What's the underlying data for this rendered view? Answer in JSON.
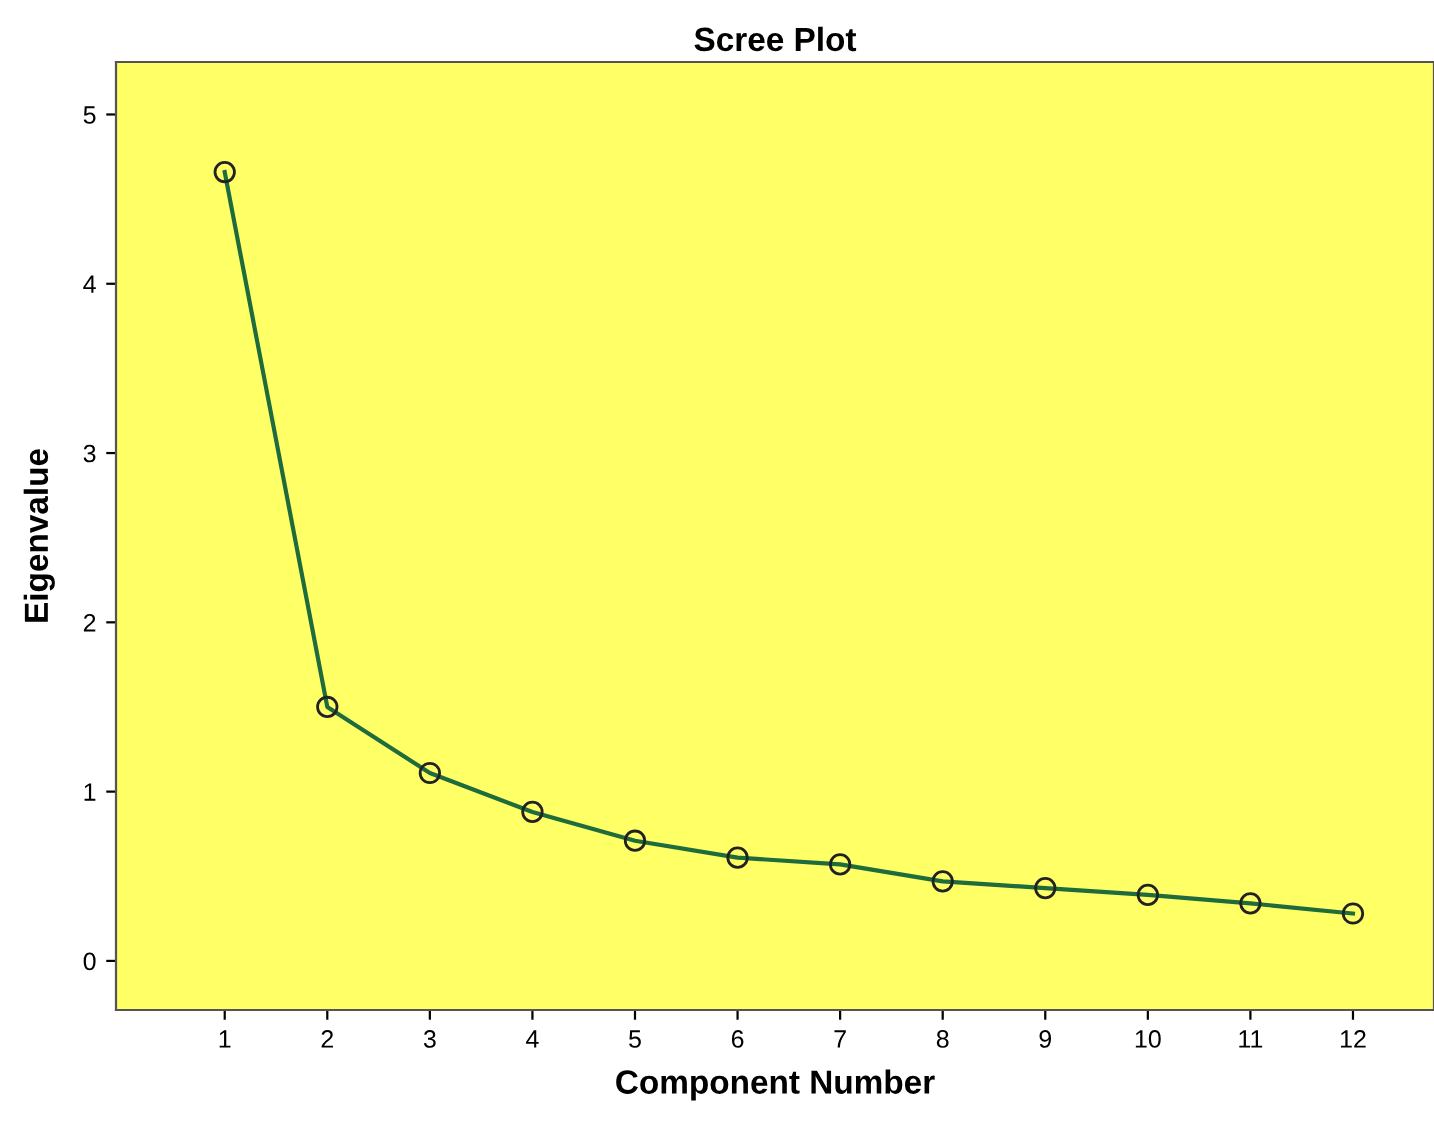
{
  "chart_data": {
    "type": "line",
    "title": "Scree Plot",
    "xlabel": "Component Number",
    "ylabel": "Eigenvalue",
    "categories": [
      "1",
      "2",
      "3",
      "4",
      "5",
      "6",
      "7",
      "8",
      "9",
      "10",
      "11",
      "12"
    ],
    "series": [
      {
        "color": "#1e6b3c",
        "values": [
          4.66,
          1.5,
          1.11,
          0.88,
          0.71,
          0.61,
          0.57,
          0.47,
          0.43,
          0.39,
          0.34,
          0.28
        ]
      }
    ],
    "ylim": [
      -0.29,
      5.31
    ],
    "yticks": [
      0,
      1,
      2,
      3,
      4,
      5
    ],
    "grid": false,
    "legend": false,
    "marker": "circle",
    "line_style": "solid"
  }
}
